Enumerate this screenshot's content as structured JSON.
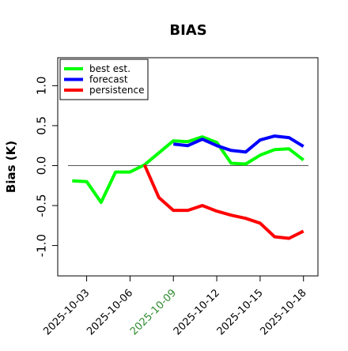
{
  "chart_data": {
    "type": "line",
    "title": "BIAS",
    "xlabel": "",
    "ylabel": "Bias (K)",
    "x": [
      "2025-10-02",
      "2025-10-03",
      "2025-10-04",
      "2025-10-05",
      "2025-10-06",
      "2025-10-07",
      "2025-10-08",
      "2025-10-09",
      "2025-10-10",
      "2025-10-11",
      "2025-10-12",
      "2025-10-13",
      "2025-10-14",
      "2025-10-15",
      "2025-10-16",
      "2025-10-17",
      "2025-10-18"
    ],
    "x_tick_labels": [
      "2025-10-03",
      "2025-10-06",
      "2025-10-09",
      "2025-10-12",
      "2025-10-15",
      "2025-10-18"
    ],
    "highlighted_tick": "2025-10-09",
    "highlight_color": "#2e8b2e",
    "xlim": [
      "2025-10-01",
      "2025-10-19"
    ],
    "ylim": [
      -1.38,
      1.35
    ],
    "y_ticks": [
      -1.0,
      -0.5,
      0.0,
      0.5,
      1.0
    ],
    "y_tick_labels": [
      "-1.0",
      "-0.5",
      "0.0",
      "0.5",
      "1.0"
    ],
    "zero_line": 0.0,
    "legend_position": "top-left",
    "series": [
      {
        "name": "best est.",
        "color": "#00ff00",
        "values": [
          -0.19,
          -0.2,
          -0.46,
          -0.08,
          -0.08,
          0.01,
          0.16,
          0.31,
          0.3,
          0.36,
          0.29,
          0.03,
          0.02,
          0.13,
          0.2,
          0.21,
          0.07
        ]
      },
      {
        "name": "forecast",
        "color": "#0000ff",
        "values": [
          null,
          null,
          null,
          null,
          null,
          null,
          null,
          0.27,
          0.25,
          0.33,
          0.25,
          0.19,
          0.17,
          0.32,
          0.37,
          0.35,
          0.24
        ]
      },
      {
        "name": "persistence",
        "color": "#ff0000",
        "values": [
          null,
          null,
          null,
          null,
          null,
          0.01,
          -0.4,
          -0.56,
          -0.56,
          -0.5,
          -0.57,
          -0.62,
          -0.66,
          -0.72,
          -0.89,
          -0.91,
          -0.82
        ]
      }
    ]
  }
}
